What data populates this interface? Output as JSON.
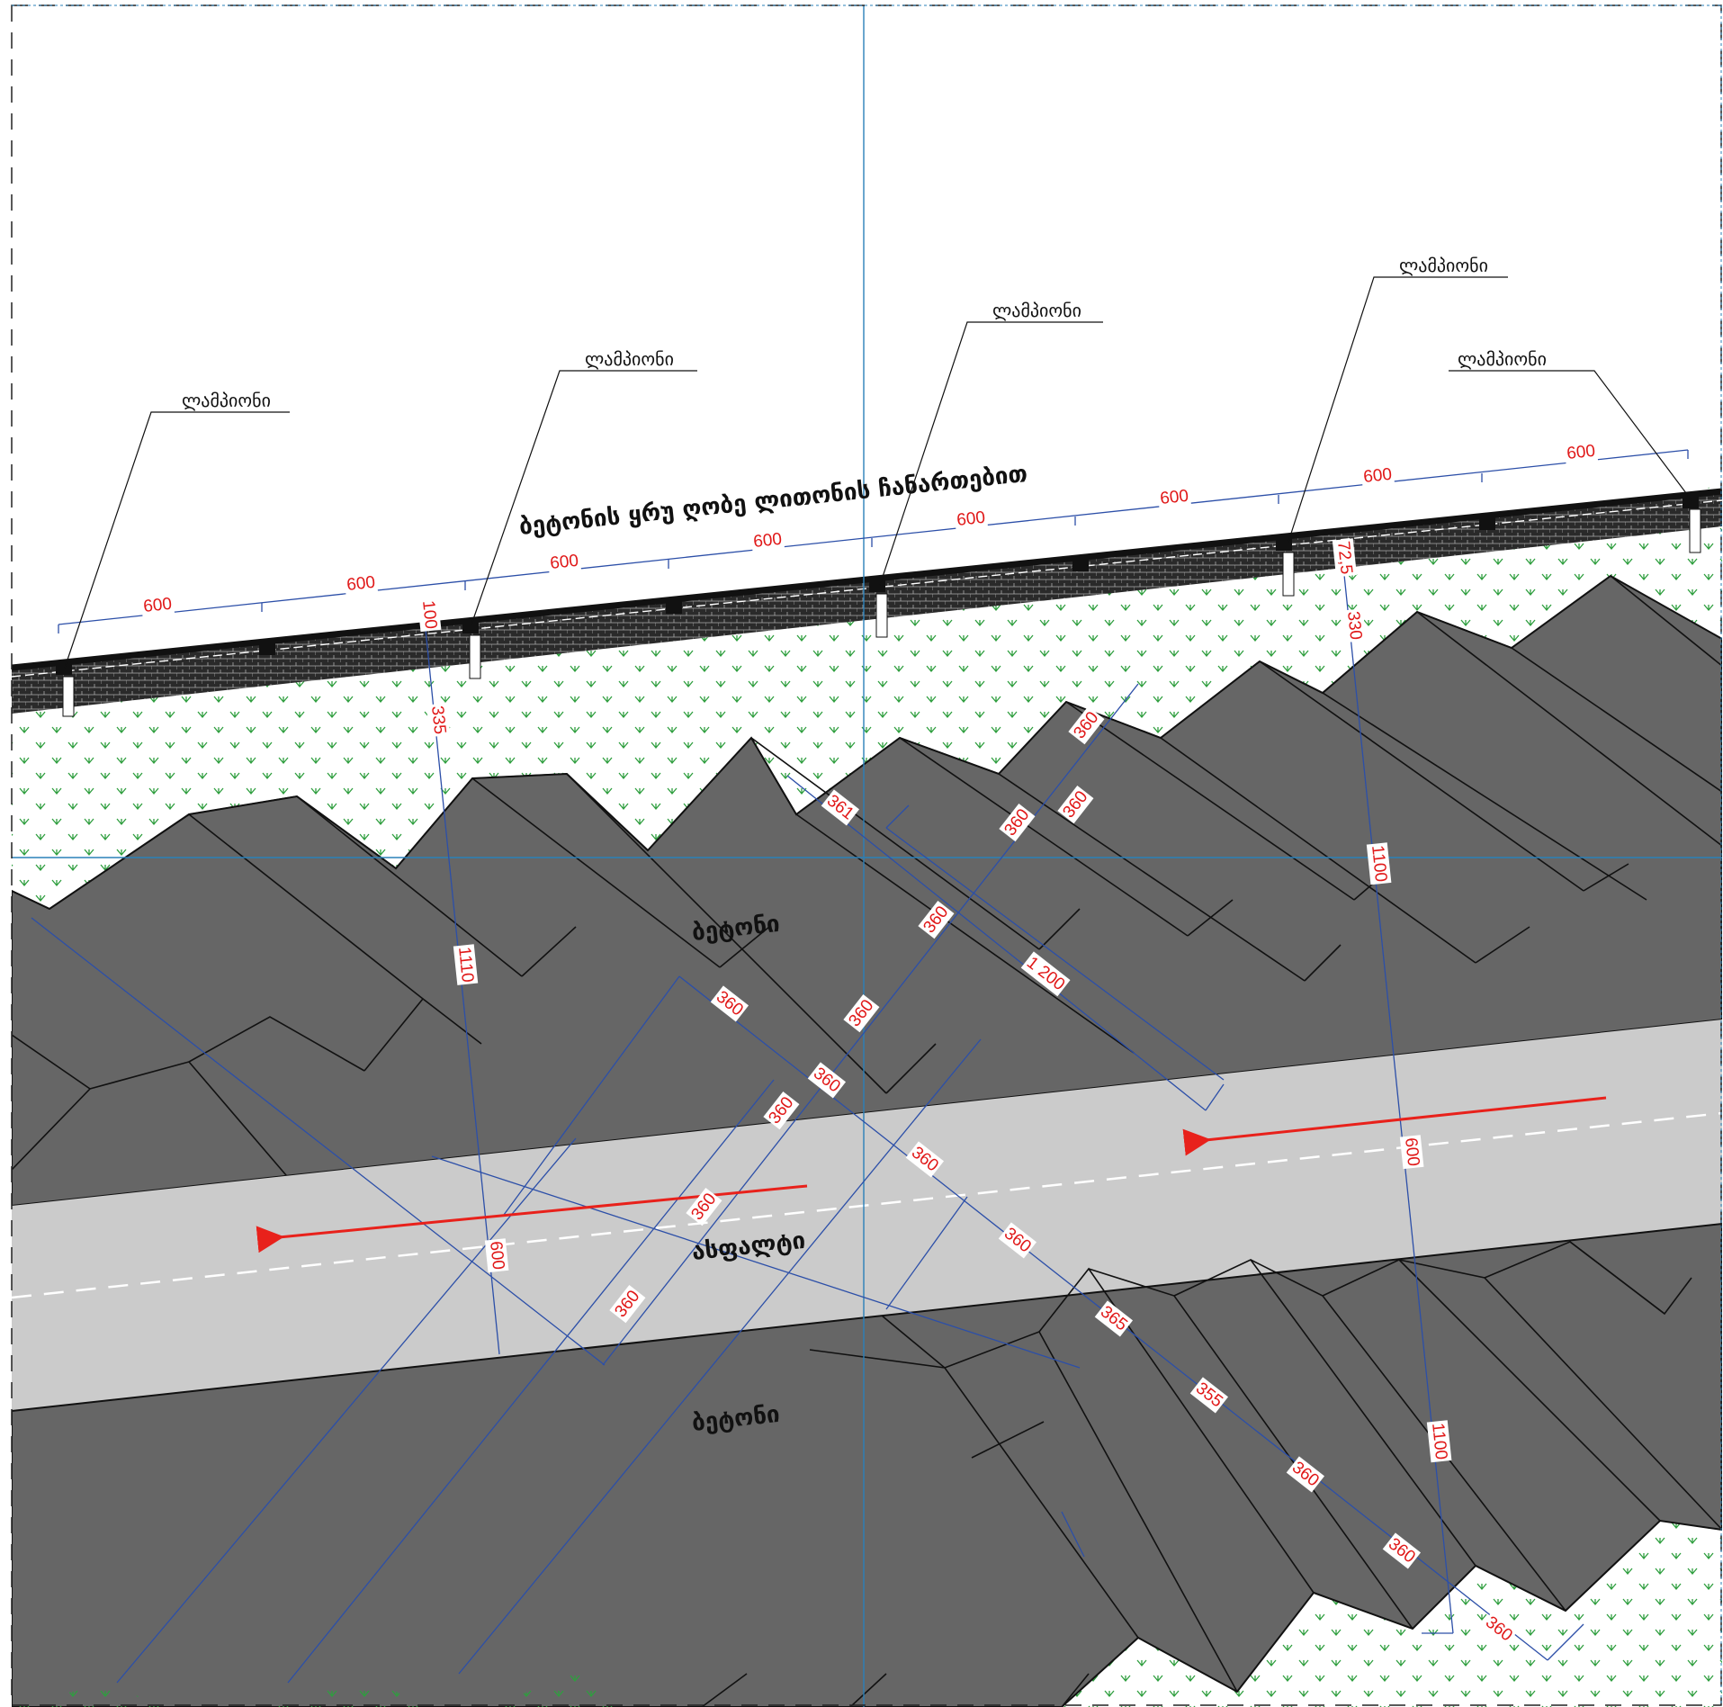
{
  "drawing": {
    "wall_label": "ბეტონის ყრუ ღობე ლითონის ჩანართებით",
    "concrete_label_top": "ბეტონი",
    "concrete_label_bottom": "ბეტონი",
    "asphalt_label": "ასფალტი",
    "lamp_label": "ლამპიონი",
    "lamp_labels": [
      "ლამპიონი",
      "ლამპიონი",
      "ლამპიონი",
      "ლამპიონი",
      "ლამპიონი"
    ],
    "wall_dimensions": [
      "600",
      "600",
      "600",
      "600",
      "600",
      "600",
      "600",
      "600"
    ],
    "dimensions": {
      "d100": "100",
      "d335": "335",
      "d1110": "1110",
      "d600_left": "600",
      "d725": "72,5",
      "d330": "330",
      "d1100_top": "1100",
      "d600_right": "600",
      "d1100_bottom": "1100",
      "d361": "361",
      "d1200": "1 200"
    },
    "stall_dims_upper": [
      "360",
      "360",
      "360",
      "360",
      "360",
      "360",
      "360",
      "360"
    ],
    "stall_dims_lower": [
      "360",
      "360",
      "360",
      "365",
      "355",
      "360",
      "360",
      "360"
    ],
    "stall_dims_left": [
      "360",
      "360"
    ],
    "colors": {
      "concrete": "#666666",
      "asphalt": "#cbcbcb",
      "grass_symbol": "#2e9e3e",
      "dimension_line": "#2c4fa8",
      "dimension_text": "#e01818",
      "traffic_arrow": "#e8211b",
      "grid_line": "#2a80b9"
    },
    "icons": {
      "lamp": "lamp-post-square",
      "grass": "grass-hatch-symbol",
      "arrow": "traffic-direction-arrow"
    }
  }
}
